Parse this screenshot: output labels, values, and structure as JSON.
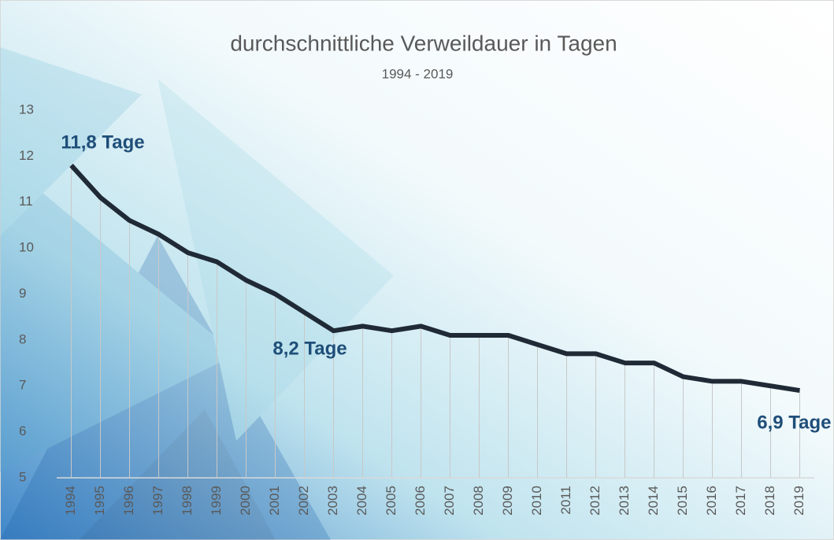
{
  "chart_data": {
    "type": "line",
    "title": "durchschnittliche Verweildauer in Tagen",
    "subtitle": "1994 - 2019",
    "categories": [
      "1994",
      "1995",
      "1996",
      "1997",
      "1998",
      "1999",
      "2000",
      "2001",
      "2002",
      "2003",
      "2004",
      "2005",
      "2006",
      "2007",
      "2008",
      "2009",
      "2010",
      "2011",
      "2012",
      "2013",
      "2014",
      "2015",
      "2016",
      "2017",
      "2018",
      "2019"
    ],
    "series": [
      {
        "color": "#1f2a36",
        "values": [
          11.8,
          11.1,
          10.6,
          10.3,
          9.9,
          9.7,
          9.3,
          9.0,
          8.6,
          8.2,
          8.3,
          8.2,
          8.3,
          8.1,
          8.1,
          8.1,
          7.9,
          7.7,
          7.7,
          7.5,
          7.5,
          7.2,
          7.1,
          7.1,
          7.0,
          6.9
        ],
        "value_labels": [
          "11,8 Tage",
          null,
          null,
          null,
          null,
          null,
          null,
          null,
          null,
          "8,2 Tage",
          null,
          null,
          null,
          null,
          null,
          null,
          null,
          null,
          null,
          null,
          null,
          null,
          null,
          null,
          null,
          "6,9 Tage"
        ]
      }
    ],
    "ylim": [
      5,
      13
    ],
    "yticks": [
      5,
      6,
      7,
      8,
      9,
      10,
      11,
      12,
      13
    ]
  }
}
